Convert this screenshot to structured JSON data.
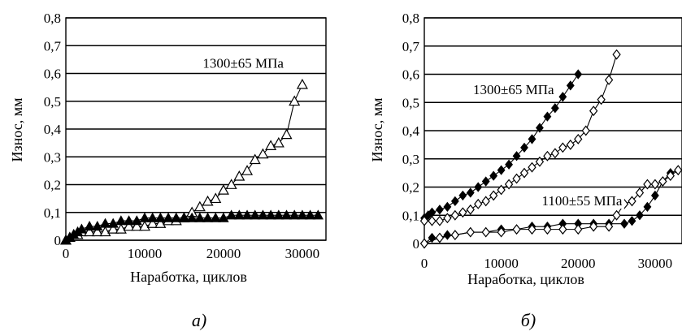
{
  "chart_data": [
    {
      "type": "scatter",
      "caption": "а)",
      "ylabel": "Износ, мм",
      "xlabel": "Наработка, циклов",
      "ylim": [
        0,
        0.8
      ],
      "xlim": [
        0,
        33000
      ],
      "yticks": [
        "0",
        "0,1",
        "0,2",
        "0,3",
        "0,4",
        "0,5",
        "0,6",
        "0,7",
        "0,8"
      ],
      "xticks": [
        "0",
        "10000",
        "20000",
        "30000"
      ],
      "grid": "horizontal",
      "annotations": [
        {
          "text": "1300±65 МПа",
          "x": 22500,
          "y": 0.62
        }
      ],
      "series": [
        {
          "marker": "triangle-open",
          "color": "#000000",
          "x": [
            0,
            500,
            1000,
            1500,
            2000,
            3000,
            4000,
            5000,
            6000,
            7000,
            8000,
            9000,
            10000,
            11000,
            12000,
            13000,
            14000,
            15000,
            16000,
            17000,
            18000,
            19000,
            20000,
            21000,
            22000,
            23000,
            24000,
            25000,
            26000,
            27000,
            28000,
            29000,
            30000
          ],
          "y": [
            0.0,
            0.01,
            0.02,
            0.02,
            0.03,
            0.03,
            0.03,
            0.03,
            0.04,
            0.04,
            0.05,
            0.05,
            0.05,
            0.06,
            0.06,
            0.07,
            0.07,
            0.08,
            0.1,
            0.12,
            0.14,
            0.15,
            0.18,
            0.2,
            0.23,
            0.25,
            0.29,
            0.31,
            0.34,
            0.35,
            0.38,
            0.5,
            0.56
          ]
        },
        {
          "marker": "triangle-filled",
          "color": "#000000",
          "x": [
            0,
            500,
            1000,
            1500,
            2000,
            3000,
            4000,
            5000,
            6000,
            7000,
            8000,
            9000,
            10000,
            11000,
            12000,
            13000,
            14000,
            15000,
            16000,
            17000,
            18000,
            19000,
            20000,
            21000,
            22000,
            23000,
            24000,
            25000,
            26000,
            27000,
            28000,
            29000,
            30000,
            31000,
            32000
          ],
          "y": [
            0.0,
            0.01,
            0.02,
            0.03,
            0.04,
            0.05,
            0.05,
            0.06,
            0.06,
            0.07,
            0.07,
            0.07,
            0.08,
            0.08,
            0.08,
            0.08,
            0.08,
            0.08,
            0.08,
            0.08,
            0.08,
            0.08,
            0.08,
            0.09,
            0.09,
            0.09,
            0.09,
            0.09,
            0.09,
            0.09,
            0.09,
            0.09,
            0.09,
            0.09,
            0.09
          ]
        }
      ]
    },
    {
      "type": "scatter",
      "caption": "б)",
      "ylabel": "Износ, мм",
      "xlabel": "Наработка, циклов",
      "ylim": [
        0,
        0.8
      ],
      "xlim": [
        0,
        33500
      ],
      "yticks": [
        "0",
        "0,1",
        "0,2",
        "0,3",
        "0,4",
        "0,5",
        "0,6",
        "0,7",
        "0,8"
      ],
      "xticks": [
        "0",
        "10000",
        "20000",
        "30000"
      ],
      "grid": "horizontal",
      "annotations": [
        {
          "text": "1300±65 МПа",
          "x": 11600,
          "y": 0.53
        },
        {
          "text": "1100±55 МПа",
          "x": 20500,
          "y": 0.135
        }
      ],
      "series": [
        {
          "marker": "diamond-filled",
          "color": "#000000",
          "x": [
            0,
            500,
            1000,
            2000,
            3000,
            4000,
            5000,
            6000,
            7000,
            8000,
            9000,
            10000,
            11000,
            12000,
            13000,
            14000,
            15000,
            16000,
            17000,
            18000,
            19000,
            20000
          ],
          "y": [
            0.09,
            0.1,
            0.11,
            0.12,
            0.13,
            0.15,
            0.17,
            0.18,
            0.2,
            0.22,
            0.24,
            0.26,
            0.28,
            0.31,
            0.34,
            0.37,
            0.41,
            0.45,
            0.48,
            0.52,
            0.56,
            0.6
          ]
        },
        {
          "marker": "diamond-open",
          "color": "#000000",
          "x": [
            0,
            1000,
            2000,
            3000,
            4000,
            5000,
            6000,
            7000,
            8000,
            9000,
            10000,
            11000,
            12000,
            13000,
            14000,
            15000,
            16000,
            17000,
            18000,
            19000,
            20000,
            21000,
            22000,
            23000,
            24000,
            25000
          ],
          "y": [
            0.08,
            0.08,
            0.08,
            0.09,
            0.1,
            0.11,
            0.12,
            0.14,
            0.15,
            0.17,
            0.19,
            0.21,
            0.23,
            0.25,
            0.27,
            0.29,
            0.31,
            0.32,
            0.34,
            0.35,
            0.37,
            0.4,
            0.47,
            0.51,
            0.58,
            0.67
          ]
        },
        {
          "marker": "diamond-filled",
          "color": "#000000",
          "x": [
            0,
            1000,
            2000,
            3000,
            4000,
            6000,
            8000,
            10000,
            12000,
            14000,
            16000,
            18000,
            20000,
            22000,
            24000,
            26000,
            27000,
            28000,
            29000,
            30000,
            31000,
            32000,
            33000
          ],
          "y": [
            0.0,
            0.02,
            0.02,
            0.03,
            0.03,
            0.04,
            0.04,
            0.05,
            0.05,
            0.06,
            0.06,
            0.07,
            0.07,
            0.07,
            0.07,
            0.07,
            0.08,
            0.1,
            0.13,
            0.17,
            0.22,
            0.25,
            0.26
          ]
        },
        {
          "marker": "diamond-open",
          "color": "#000000",
          "x": [
            0,
            2000,
            4000,
            6000,
            8000,
            10000,
            12000,
            14000,
            16000,
            18000,
            20000,
            22000,
            24000,
            25000,
            26000,
            27000,
            28000,
            29000,
            30000,
            31000,
            32000,
            33000
          ],
          "y": [
            0.0,
            0.02,
            0.03,
            0.04,
            0.04,
            0.04,
            0.05,
            0.05,
            0.05,
            0.05,
            0.05,
            0.06,
            0.06,
            0.1,
            0.14,
            0.15,
            0.18,
            0.21,
            0.21,
            0.22,
            0.24,
            0.26
          ]
        }
      ]
    }
  ]
}
